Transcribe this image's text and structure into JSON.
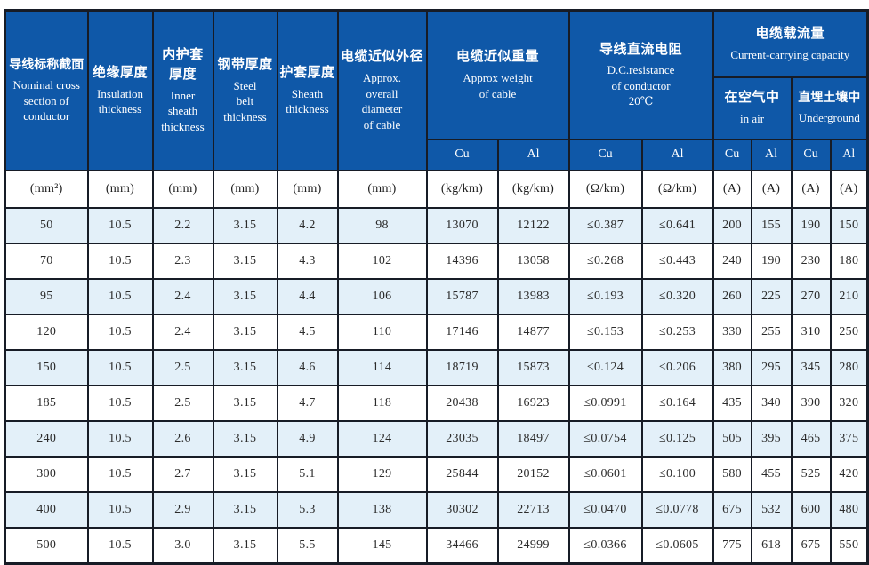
{
  "colors": {
    "header_bg": "#0f58a8",
    "header_text": "#ffffff",
    "row_alt_bg": "#e3f0f9",
    "row_bg": "#ffffff",
    "border": "#171c26",
    "body_text": "#2b2b2b"
  },
  "header": {
    "cols": [
      {
        "zh": "导线标称截面",
        "en": "Nominal cross\nsection of\nconductor"
      },
      {
        "zh": "绝缘厚度",
        "en": "Insulation\nthickness"
      },
      {
        "zh": "内护套\n厚度",
        "en": "Inner\nsheath\nthickness"
      },
      {
        "zh": "钢带厚度",
        "en": "Steel\nbelt\nthickness"
      },
      {
        "zh": "护套厚度",
        "en": "Sheath\nthickness"
      },
      {
        "zh": "电缆近似外径",
        "en": "Approx.\noverall\ndiameter\nof cable"
      }
    ],
    "groups": {
      "weight": {
        "zh": "电缆近似重量",
        "en": "Approx weight\nof cable"
      },
      "resistance": {
        "zh": "导线直流电阻",
        "en": "D.C.resistance\nof conductor\n20℃"
      },
      "capacity": {
        "zh": "电缆载流量",
        "en": "Current-carrying capacity"
      },
      "in_air": {
        "zh": "在空气中",
        "en": "in air"
      },
      "underground": {
        "zh": "直埋土壤中",
        "en": "Underground"
      }
    },
    "cu_al": [
      "Cu",
      "Al",
      "Cu",
      "Al",
      "Cu",
      "Al",
      "Cu",
      "Al"
    ]
  },
  "units": [
    "(mm²)",
    "(mm)",
    "(mm)",
    "(mm)",
    "(mm)",
    "(mm)",
    "(kg/km)",
    "(kg/km)",
    "(Ω/km)",
    "(Ω/km)",
    "(A)",
    "(A)",
    "(A)",
    "(A)"
  ],
  "rows": [
    [
      "50",
      "10.5",
      "2.2",
      "3.15",
      "4.2",
      "98",
      "13070",
      "12122",
      "≤0.387",
      "≤0.641",
      "200",
      "155",
      "190",
      "150"
    ],
    [
      "70",
      "10.5",
      "2.3",
      "3.15",
      "4.3",
      "102",
      "14396",
      "13058",
      "≤0.268",
      "≤0.443",
      "240",
      "190",
      "230",
      "180"
    ],
    [
      "95",
      "10.5",
      "2.4",
      "3.15",
      "4.4",
      "106",
      "15787",
      "13983",
      "≤0.193",
      "≤0.320",
      "260",
      "225",
      "270",
      "210"
    ],
    [
      "120",
      "10.5",
      "2.4",
      "3.15",
      "4.5",
      "110",
      "17146",
      "14877",
      "≤0.153",
      "≤0.253",
      "330",
      "255",
      "310",
      "250"
    ],
    [
      "150",
      "10.5",
      "2.5",
      "3.15",
      "4.6",
      "114",
      "18719",
      "15873",
      "≤0.124",
      "≤0.206",
      "380",
      "295",
      "345",
      "280"
    ],
    [
      "185",
      "10.5",
      "2.5",
      "3.15",
      "4.7",
      "118",
      "20438",
      "16923",
      "≤0.0991",
      "≤0.164",
      "435",
      "340",
      "390",
      "320"
    ],
    [
      "240",
      "10.5",
      "2.6",
      "3.15",
      "4.9",
      "124",
      "23035",
      "18497",
      "≤0.0754",
      "≤0.125",
      "505",
      "395",
      "465",
      "375"
    ],
    [
      "300",
      "10.5",
      "2.7",
      "3.15",
      "5.1",
      "129",
      "25844",
      "20152",
      "≤0.0601",
      "≤0.100",
      "580",
      "455",
      "525",
      "420"
    ],
    [
      "400",
      "10.5",
      "2.9",
      "3.15",
      "5.3",
      "138",
      "30302",
      "22713",
      "≤0.0470",
      "≤0.0778",
      "675",
      "532",
      "600",
      "480"
    ],
    [
      "500",
      "10.5",
      "3.0",
      "3.15",
      "5.5",
      "145",
      "34466",
      "24999",
      "≤0.0366",
      "≤0.0605",
      "775",
      "618",
      "675",
      "550"
    ]
  ]
}
